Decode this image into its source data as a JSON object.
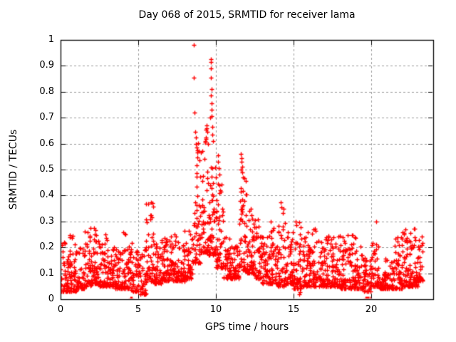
{
  "chart_data": {
    "type": "scatter",
    "title": "Day 068 of 2015, SRMTID for receiver lama",
    "xlabel": "GPS time / hours",
    "ylabel": "SRMTID / TECUs",
    "xlim": [
      0,
      24
    ],
    "ylim": [
      0,
      1
    ],
    "xticks": {
      "values": [
        0,
        5,
        10,
        15,
        20
      ],
      "labels": [
        "0",
        "5",
        "10",
        "15",
        "20"
      ]
    },
    "yticks": {
      "values": [
        0,
        0.1,
        0.2,
        0.3,
        0.4,
        0.5,
        0.6,
        0.7,
        0.8,
        0.9,
        1
      ],
      "labels": [
        "0",
        "0.1",
        "0.2",
        "0.3",
        "0.4",
        "0.5",
        "0.6",
        "0.7",
        "0.8",
        "0.9",
        "1"
      ]
    },
    "grid": {
      "show": true,
      "style": "dashed",
      "color": "#9a9a9a"
    },
    "axis_color": "#000000",
    "background": "#ffffff",
    "marker": {
      "glyph": "plus",
      "color": "#ff0000",
      "size": 7
    },
    "point_generation": {
      "seed": 68,
      "skew_exponent": 2.2,
      "band_bins": [
        [
          0.0,
          0.5,
          0.03,
          0.22,
          55
        ],
        [
          0.5,
          1.0,
          0.03,
          0.25,
          55
        ],
        [
          1.0,
          1.5,
          0.04,
          0.2,
          50
        ],
        [
          1.5,
          2.0,
          0.05,
          0.28,
          55
        ],
        [
          2.0,
          2.5,
          0.06,
          0.28,
          55
        ],
        [
          2.5,
          3.0,
          0.05,
          0.25,
          50
        ],
        [
          3.0,
          3.5,
          0.05,
          0.2,
          50
        ],
        [
          3.5,
          4.0,
          0.04,
          0.2,
          50
        ],
        [
          4.0,
          4.5,
          0.04,
          0.26,
          50
        ],
        [
          4.5,
          5.0,
          0.03,
          0.22,
          48
        ],
        [
          5.0,
          5.5,
          0.02,
          0.2,
          48
        ],
        [
          5.5,
          6.0,
          0.07,
          0.38,
          52
        ],
        [
          6.0,
          6.5,
          0.06,
          0.22,
          50
        ],
        [
          6.5,
          7.0,
          0.07,
          0.25,
          52
        ],
        [
          7.0,
          7.5,
          0.07,
          0.25,
          52
        ],
        [
          7.5,
          8.0,
          0.07,
          0.22,
          50
        ],
        [
          8.0,
          8.5,
          0.08,
          0.28,
          48
        ],
        [
          8.5,
          9.0,
          0.14,
          0.62,
          50
        ],
        [
          9.0,
          9.5,
          0.18,
          0.62,
          55
        ],
        [
          9.5,
          10.0,
          0.17,
          0.58,
          60
        ],
        [
          10.0,
          10.5,
          0.12,
          0.46,
          55
        ],
        [
          10.5,
          11.0,
          0.08,
          0.25,
          50
        ],
        [
          11.0,
          11.5,
          0.08,
          0.24,
          50
        ],
        [
          11.5,
          12.0,
          0.11,
          0.48,
          55
        ],
        [
          12.0,
          12.5,
          0.1,
          0.36,
          55
        ],
        [
          12.5,
          13.0,
          0.08,
          0.32,
          50
        ],
        [
          13.0,
          13.5,
          0.06,
          0.25,
          50
        ],
        [
          13.5,
          14.0,
          0.06,
          0.28,
          50
        ],
        [
          14.0,
          14.5,
          0.05,
          0.37,
          52
        ],
        [
          14.5,
          15.0,
          0.06,
          0.28,
          50
        ],
        [
          15.0,
          15.5,
          0.04,
          0.3,
          50
        ],
        [
          15.5,
          16.0,
          0.05,
          0.28,
          50
        ],
        [
          16.0,
          16.5,
          0.05,
          0.28,
          50
        ],
        [
          16.5,
          17.0,
          0.05,
          0.25,
          50
        ],
        [
          17.0,
          17.5,
          0.05,
          0.26,
          50
        ],
        [
          17.5,
          18.0,
          0.05,
          0.25,
          50
        ],
        [
          18.0,
          18.5,
          0.04,
          0.25,
          50
        ],
        [
          18.5,
          19.0,
          0.04,
          0.25,
          50
        ],
        [
          19.0,
          19.5,
          0.04,
          0.24,
          46
        ],
        [
          19.5,
          20.0,
          0.03,
          0.16,
          44
        ],
        [
          20.0,
          20.5,
          0.05,
          0.22,
          46
        ],
        [
          20.5,
          21.0,
          0.04,
          0.16,
          46
        ],
        [
          21.0,
          21.5,
          0.04,
          0.16,
          46
        ],
        [
          21.5,
          22.0,
          0.04,
          0.25,
          50
        ],
        [
          22.0,
          22.5,
          0.05,
          0.26,
          52
        ],
        [
          22.5,
          23.0,
          0.05,
          0.26,
          50
        ],
        [
          23.0,
          23.35,
          0.07,
          0.25,
          34
        ]
      ],
      "outlier_points": [
        [
          8.56,
          0.98
        ],
        [
          8.6,
          0.855
        ],
        [
          8.62,
          0.72
        ],
        [
          8.68,
          0.645
        ],
        [
          8.7,
          0.625
        ],
        [
          8.73,
          0.6
        ],
        [
          8.76,
          0.585
        ],
        [
          8.79,
          0.565
        ],
        [
          8.82,
          0.575
        ],
        [
          9.3,
          0.605
        ],
        [
          9.34,
          0.625
        ],
        [
          9.37,
          0.655
        ],
        [
          9.4,
          0.67
        ],
        [
          9.43,
          0.66
        ],
        [
          9.46,
          0.645
        ],
        [
          9.49,
          0.6
        ],
        [
          9.64,
          0.7
        ],
        [
          9.67,
          0.925
        ],
        [
          9.69,
          0.915
        ],
        [
          9.68,
          0.89
        ],
        [
          9.7,
          0.855
        ],
        [
          9.71,
          0.81
        ],
        [
          9.7,
          0.785
        ],
        [
          9.72,
          0.755
        ],
        [
          9.73,
          0.73
        ],
        [
          9.74,
          0.705
        ],
        [
          9.76,
          0.665
        ],
        [
          9.78,
          0.635
        ],
        [
          9.8,
          0.61
        ],
        [
          10.13,
          0.555
        ],
        [
          10.16,
          0.53
        ],
        [
          10.19,
          0.505
        ],
        [
          10.22,
          0.48
        ],
        [
          11.6,
          0.5
        ],
        [
          11.62,
          0.56
        ],
        [
          11.64,
          0.545
        ],
        [
          11.66,
          0.53
        ],
        [
          11.69,
          0.51
        ],
        [
          11.72,
          0.49
        ],
        [
          11.76,
          0.47
        ],
        [
          11.94,
          0.455
        ],
        [
          13.55,
          0.3
        ],
        [
          14.18,
          0.375
        ],
        [
          14.22,
          0.355
        ],
        [
          15.15,
          0.3
        ],
        [
          15.2,
          0.285
        ],
        [
          20.32,
          0.3
        ],
        [
          22.2,
          0.27
        ],
        [
          22.78,
          0.272
        ],
        [
          22.82,
          0.272
        ],
        [
          22.8,
          0.24
        ],
        [
          4.5,
          0.004
        ],
        [
          4.53,
          0.004
        ],
        [
          4.56,
          0.004
        ],
        [
          4.6,
          0.004
        ],
        [
          19.66,
          0.004
        ],
        [
          19.7,
          0.004
        ],
        [
          19.73,
          0.004
        ],
        [
          19.77,
          0.004
        ],
        [
          19.81,
          0.004
        ],
        [
          19.9,
          0.004
        ],
        [
          15.38,
          0.02
        ],
        [
          15.43,
          0.028
        ]
      ]
    }
  }
}
